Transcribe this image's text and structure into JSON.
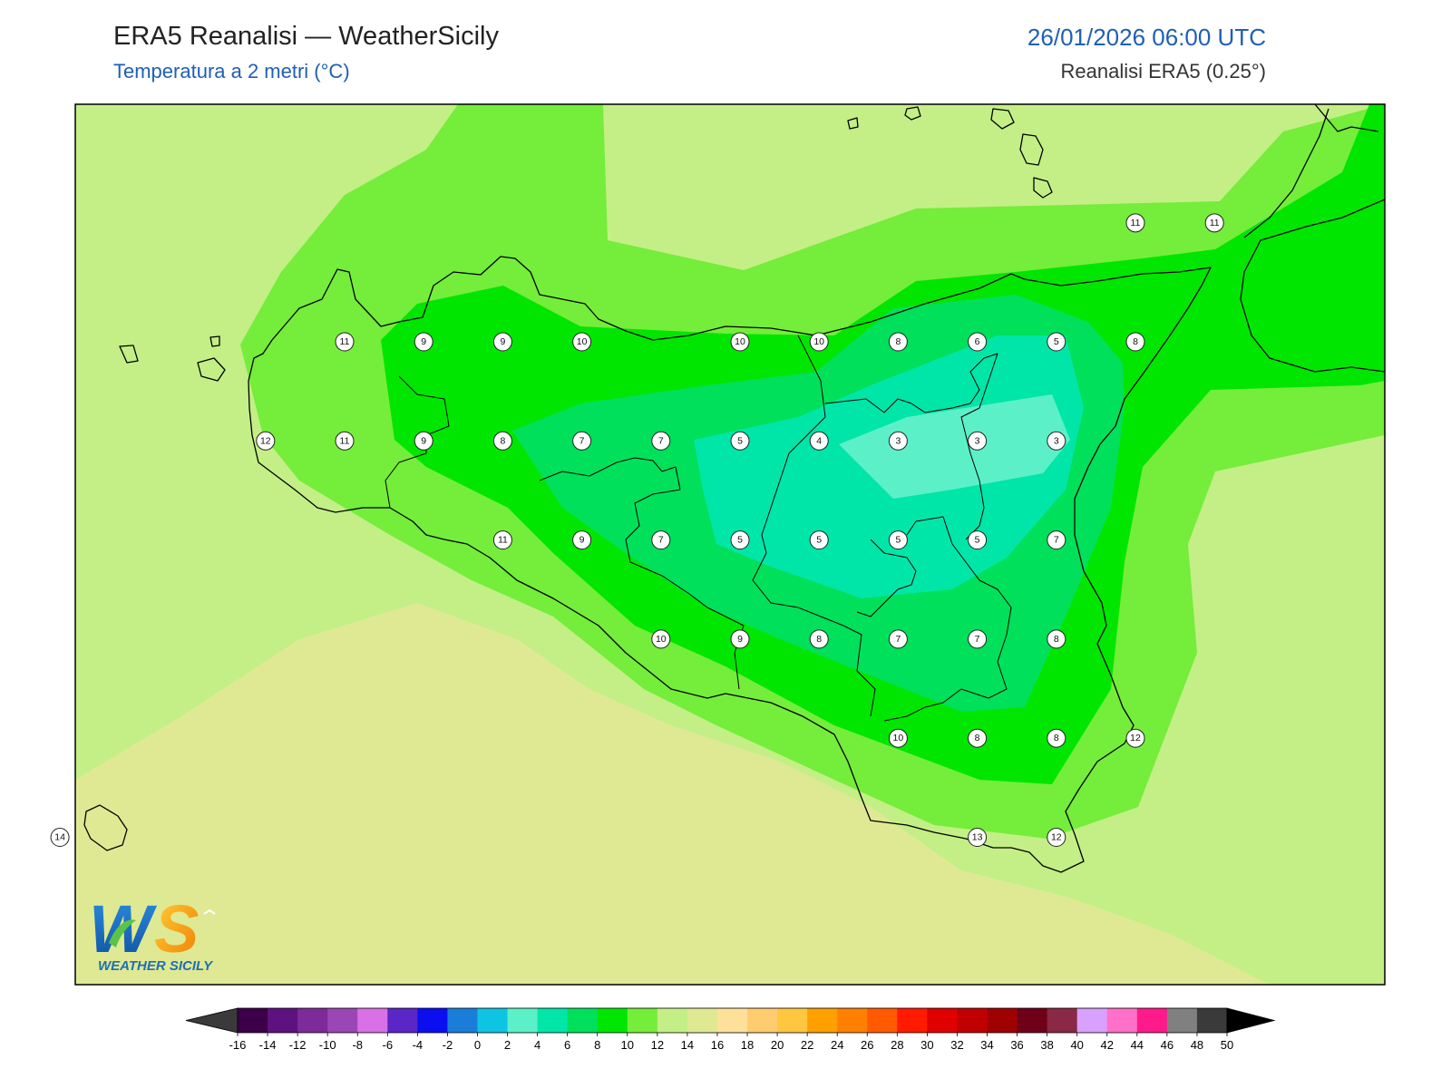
{
  "header": {
    "title": "ERA5 Reanalisi — WeatherSicily",
    "subtitle": "Temperatura a 2 metri (°C)",
    "datetime": "26/01/2026 06:00 UTC",
    "source": "Reanalisi ERA5 (0.25°)"
  },
  "logo": {
    "letters": "WS",
    "caption": "WEATHER SICILY"
  },
  "stations": [
    {
      "id": "s1",
      "value": "11",
      "lon": 12.0,
      "lat": 38.0
    },
    {
      "id": "s2",
      "value": "9",
      "lon": 12.5,
      "lat": 38.0
    },
    {
      "id": "s3",
      "value": "9",
      "lon": 13.0,
      "lat": 38.0
    },
    {
      "id": "s4",
      "value": "10",
      "lon": 13.5,
      "lat": 38.0
    },
    {
      "id": "s5",
      "value": "10",
      "lon": 14.5,
      "lat": 38.0
    },
    {
      "id": "s6",
      "value": "10",
      "lon": 15.0,
      "lat": 38.0
    },
    {
      "id": "s7",
      "value": "8",
      "lon": 15.5,
      "lat": 38.0
    },
    {
      "id": "s8",
      "value": "6",
      "lon": 16.0,
      "lat": 38.0
    },
    {
      "id": "s9",
      "value": "5",
      "lon": 16.5,
      "lat": 38.0
    },
    {
      "id": "s10",
      "value": "8",
      "lon": 17.0,
      "lat": 38.0
    },
    {
      "id": "s11",
      "value": "11",
      "lon": 17.0,
      "lat": 38.6
    },
    {
      "id": "s12",
      "value": "11",
      "lon": 17.5,
      "lat": 38.6
    },
    {
      "id": "s13",
      "value": "12",
      "lon": 11.5,
      "lat": 37.5
    },
    {
      "id": "s14",
      "value": "11",
      "lon": 12.0,
      "lat": 37.5
    },
    {
      "id": "s15",
      "value": "9",
      "lon": 12.5,
      "lat": 37.5
    },
    {
      "id": "s16",
      "value": "8",
      "lon": 13.0,
      "lat": 37.5
    },
    {
      "id": "s17",
      "value": "7",
      "lon": 13.5,
      "lat": 37.5
    },
    {
      "id": "s18",
      "value": "7",
      "lon": 14.0,
      "lat": 37.5
    },
    {
      "id": "s19",
      "value": "5",
      "lon": 14.5,
      "lat": 37.5
    },
    {
      "id": "s20",
      "value": "4",
      "lon": 15.0,
      "lat": 37.5
    },
    {
      "id": "s21",
      "value": "3",
      "lon": 15.5,
      "lat": 37.5
    },
    {
      "id": "s22",
      "value": "3",
      "lon": 16.0,
      "lat": 37.5
    },
    {
      "id": "s23",
      "value": "3",
      "lon": 16.5,
      "lat": 37.5
    },
    {
      "id": "s24",
      "value": "11",
      "lon": 13.0,
      "lat": 37.0
    },
    {
      "id": "s25",
      "value": "9",
      "lon": 13.5,
      "lat": 37.0
    },
    {
      "id": "s26",
      "value": "7",
      "lon": 14.0,
      "lat": 37.0
    },
    {
      "id": "s27",
      "value": "5",
      "lon": 14.5,
      "lat": 37.0
    },
    {
      "id": "s28",
      "value": "5",
      "lon": 15.0,
      "lat": 37.0
    },
    {
      "id": "s29",
      "value": "5",
      "lon": 15.5,
      "lat": 37.0
    },
    {
      "id": "s30",
      "value": "5",
      "lon": 16.0,
      "lat": 37.0
    },
    {
      "id": "s31",
      "value": "7",
      "lon": 16.5,
      "lat": 37.0
    },
    {
      "id": "s32",
      "value": "10",
      "lon": 14.0,
      "lat": 36.5
    },
    {
      "id": "s33",
      "value": "9",
      "lon": 14.5,
      "lat": 36.5
    },
    {
      "id": "s34",
      "value": "8",
      "lon": 15.0,
      "lat": 36.5
    },
    {
      "id": "s35",
      "value": "7",
      "lon": 15.5,
      "lat": 36.5
    },
    {
      "id": "s36",
      "value": "7",
      "lon": 16.0,
      "lat": 36.5
    },
    {
      "id": "s37",
      "value": "8",
      "lon": 16.5,
      "lat": 36.5
    },
    {
      "id": "s38",
      "value": "10",
      "lon": 15.5,
      "lat": 36.0
    },
    {
      "id": "s39",
      "value": "8",
      "lon": 16.0,
      "lat": 36.0
    },
    {
      "id": "s40",
      "value": "8",
      "lon": 16.5,
      "lat": 36.0
    },
    {
      "id": "s41",
      "value": "12",
      "lon": 17.0,
      "lat": 36.0
    },
    {
      "id": "s42",
      "value": "13",
      "lon": 16.0,
      "lat": 35.5
    },
    {
      "id": "s43",
      "value": "12",
      "lon": 16.5,
      "lat": 35.5
    },
    {
      "id": "s44",
      "value": "14",
      "lon": 10.2,
      "lat": 35.5
    }
  ],
  "colorbar": {
    "unit": "°C",
    "min_color": "#3a3a3a",
    "max_color": "#000000",
    "bins": [
      {
        "from": -16,
        "color": "#3b0047"
      },
      {
        "from": -14,
        "color": "#5e1280"
      },
      {
        "from": -12,
        "color": "#7d2a9a"
      },
      {
        "from": -10,
        "color": "#9a47b5"
      },
      {
        "from": -8,
        "color": "#d970e6"
      },
      {
        "from": -6,
        "color": "#5b26c7"
      },
      {
        "from": -4,
        "color": "#0b0ff0"
      },
      {
        "from": -2,
        "color": "#1a7ed8"
      },
      {
        "from": 0,
        "color": "#0ec4e3"
      },
      {
        "from": 2,
        "color": "#5cf0c8"
      },
      {
        "from": 4,
        "color": "#00e6a8"
      },
      {
        "from": 6,
        "color": "#00e05a"
      },
      {
        "from": 8,
        "color": "#00e600"
      },
      {
        "from": 10,
        "color": "#75ed3b"
      },
      {
        "from": 12,
        "color": "#c3ef86"
      },
      {
        "from": 14,
        "color": "#dfe993"
      },
      {
        "from": 16,
        "color": "#ffe09a"
      },
      {
        "from": 18,
        "color": "#ffcc70"
      },
      {
        "from": 20,
        "color": "#ffc640"
      },
      {
        "from": 22,
        "color": "#ffa000"
      },
      {
        "from": 24,
        "color": "#ff8000"
      },
      {
        "from": 26,
        "color": "#ff5a00"
      },
      {
        "from": 28,
        "color": "#ff1a00"
      },
      {
        "from": 30,
        "color": "#e00000"
      },
      {
        "from": 32,
        "color": "#c00000"
      },
      {
        "from": 34,
        "color": "#a00000"
      },
      {
        "from": 36,
        "color": "#6e0018"
      },
      {
        "from": 38,
        "color": "#8a2846"
      },
      {
        "from": 40,
        "color": "#d9a0ff"
      },
      {
        "from": 42,
        "color": "#ff70c8"
      },
      {
        "from": 44,
        "color": "#ff1a8c"
      },
      {
        "from": 46,
        "color": "#808080"
      },
      {
        "from": 48,
        "color": "#3a3a3a"
      }
    ],
    "tick_labels": [
      "-16",
      "-14",
      "-12",
      "-10",
      "-8",
      "-6",
      "-4",
      "-2",
      "0",
      "2",
      "4",
      "6",
      "8",
      "10",
      "12",
      "14",
      "16",
      "18",
      "20",
      "22",
      "24",
      "26",
      "28",
      "30",
      "32",
      "34",
      "36",
      "38",
      "40",
      "42",
      "44",
      "46",
      "48",
      "50"
    ]
  }
}
